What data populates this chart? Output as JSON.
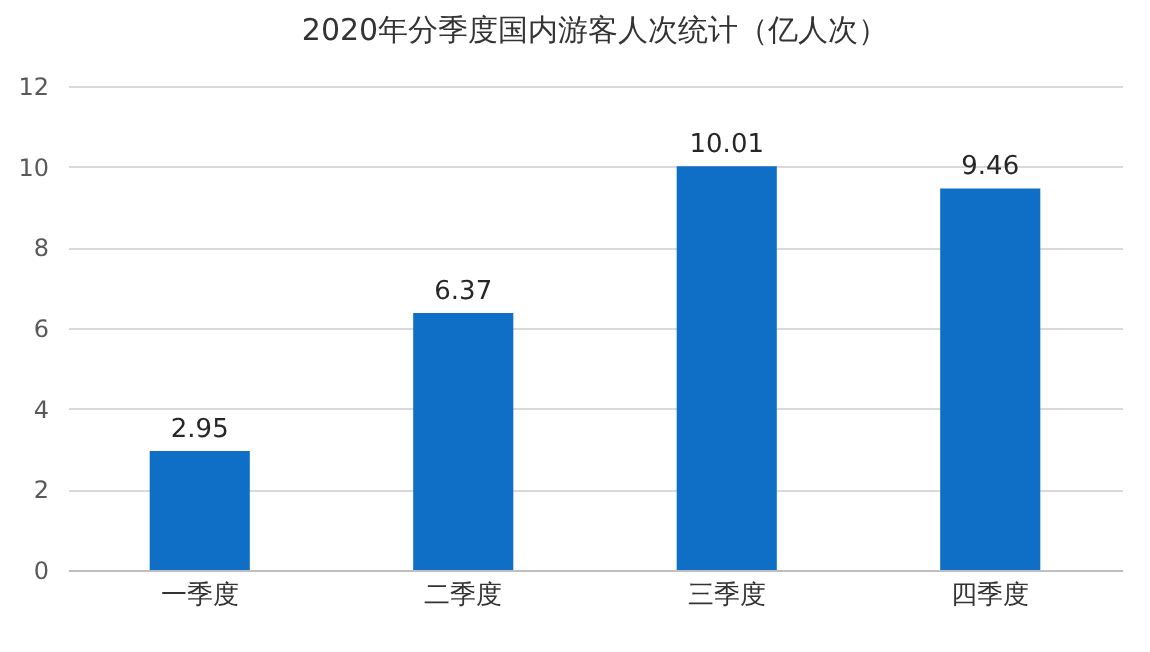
{
  "chart_data": {
    "type": "bar",
    "title": "2020年分季度国内游客人次统计（亿人次）",
    "categories": [
      "一季度",
      "二季度",
      "三季度",
      "四季度"
    ],
    "values": [
      2.95,
      6.37,
      10.01,
      9.46
    ],
    "color": "#0f6fc6",
    "ylim": [
      0,
      12
    ],
    "yticks": [
      0,
      2,
      4,
      6,
      8,
      10,
      12
    ],
    "grid": "y",
    "data_labels": true
  }
}
